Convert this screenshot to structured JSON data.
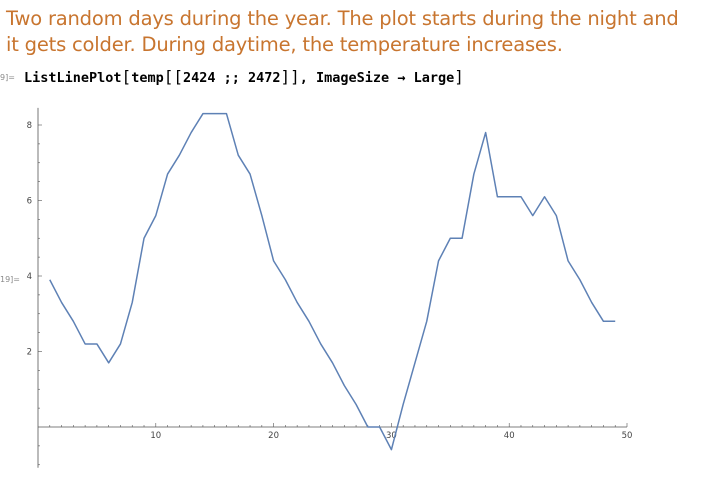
{
  "text_cell": {
    "text": "Two random days during the year. The plot starts during the night and it gets colder. During daytime, the temperature increases."
  },
  "input_cell": {
    "label": "9]=",
    "code_part1": "ListLinePlot",
    "code_part2": "temp",
    "code_part3": "2424 ;; 2472",
    "code_part4": ", ImageSize → Large"
  },
  "output_cell": {
    "label": "19]="
  },
  "chart_data": {
    "type": "line",
    "title": "",
    "xlabel": "",
    "ylabel": "",
    "xlim": [
      0,
      50
    ],
    "ylim": [
      -1,
      8.4
    ],
    "x_ticks": [
      10,
      20,
      30,
      40,
      50
    ],
    "y_ticks": [
      2,
      4,
      6,
      8
    ],
    "grid": false,
    "line_color": "#5e81b5",
    "series": [
      {
        "values": [
          3.9,
          3.3,
          2.8,
          2.2,
          2.2,
          1.7,
          2.2,
          3.3,
          5.0,
          5.6,
          6.7,
          7.2,
          7.8,
          8.3,
          8.3,
          8.3,
          7.2,
          6.7,
          5.6,
          4.4,
          3.9,
          3.3,
          2.8,
          2.2,
          1.7,
          1.1,
          0.6,
          0.0,
          0.0,
          -0.6,
          0.6,
          1.7,
          2.8,
          4.4,
          5.0,
          5.0,
          6.7,
          7.8,
          6.1,
          6.1,
          6.1,
          5.6,
          6.1,
          5.6,
          4.4,
          3.9,
          3.3,
          2.8,
          2.8
        ]
      }
    ]
  }
}
